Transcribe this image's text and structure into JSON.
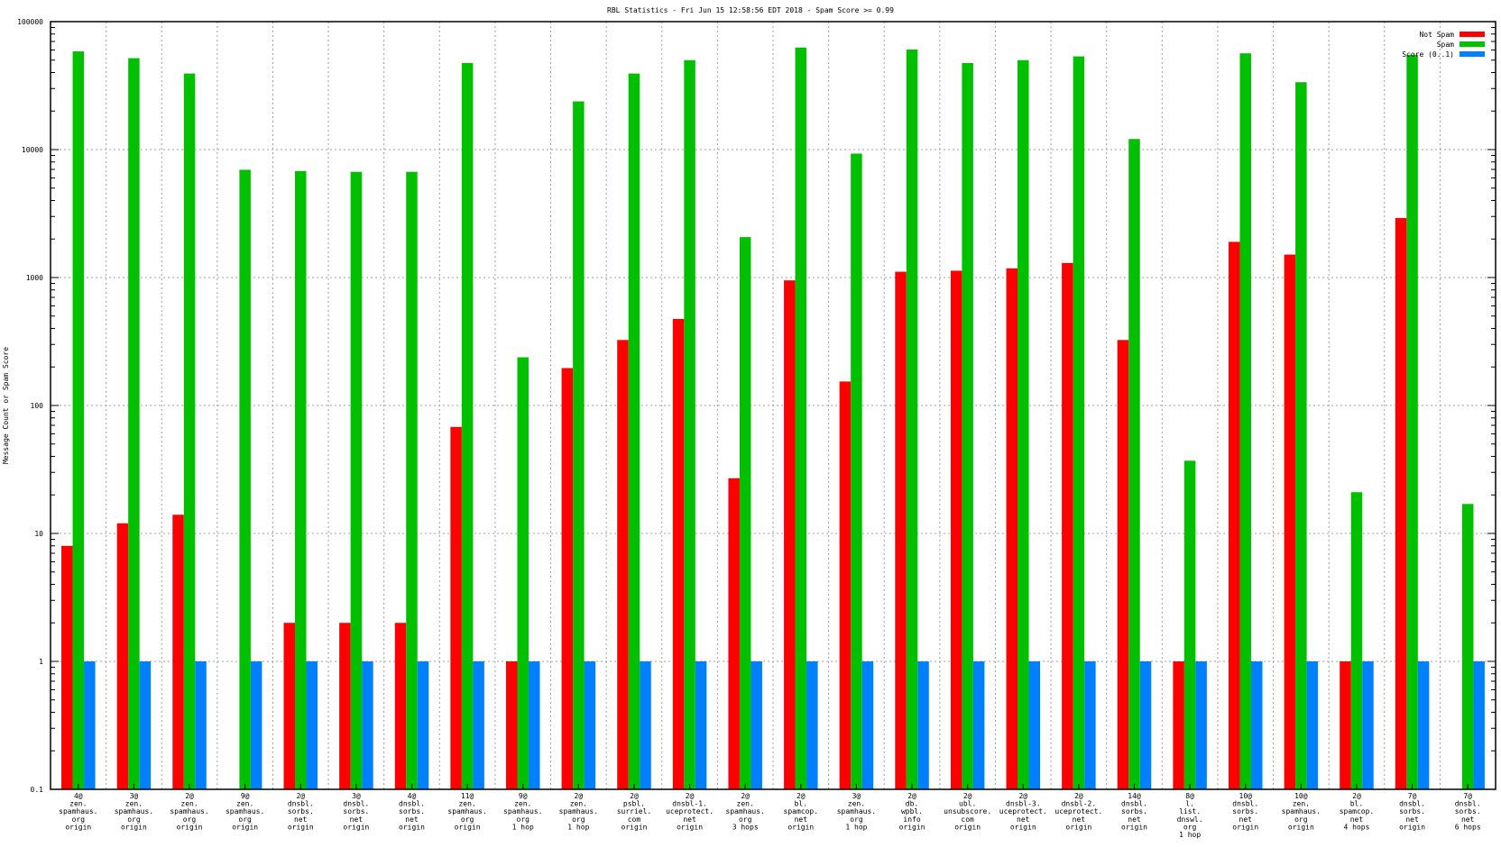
{
  "chart_data": {
    "type": "bar",
    "title": "RBL Statistics - Fri Jun 15 12:58:56 EDT 2018 - Spam Score >= 0.99",
    "xlabel": "",
    "ylabel": "Message Count or Spam Score",
    "yscale": "log",
    "ylim": [
      0.1,
      100000
    ],
    "yticks": [
      "0.1",
      "1",
      "10",
      "100",
      "1000",
      "10000",
      "100000"
    ],
    "grid": true,
    "legend_position": "top-right",
    "categories": [
      [
        "4@",
        "zen.",
        "spamhaus.",
        "org",
        "origin"
      ],
      [
        "3@",
        "zen.",
        "spamhaus.",
        "org",
        "origin"
      ],
      [
        "2@",
        "zen.",
        "spamhaus.",
        "org",
        "origin"
      ],
      [
        "9@",
        "zen.",
        "spamhaus.",
        "org",
        "origin"
      ],
      [
        "2@",
        "dnsbl.",
        "sorbs.",
        "net",
        "origin"
      ],
      [
        "3@",
        "dnsbl.",
        "sorbs.",
        "net",
        "origin"
      ],
      [
        "4@",
        "dnsbl.",
        "sorbs.",
        "net",
        "origin"
      ],
      [
        "11@",
        "zen.",
        "spamhaus.",
        "org",
        "origin"
      ],
      [
        "9@",
        "zen.",
        "spamhaus.",
        "org",
        "1 hop"
      ],
      [
        "2@",
        "zen.",
        "spamhaus.",
        "org",
        "1 hop"
      ],
      [
        "2@",
        "psbl.",
        "surriel.",
        "com",
        "origin"
      ],
      [
        "2@",
        "dnsbl-1.",
        "uceprotect.",
        "net",
        "origin"
      ],
      [
        "2@",
        "zen.",
        "spamhaus.",
        "org",
        "3 hops"
      ],
      [
        "2@",
        "bl.",
        "spamcop.",
        "net",
        "origin"
      ],
      [
        "3@",
        "zen.",
        "spamhaus.",
        "org",
        "1 hop"
      ],
      [
        "2@",
        "db.",
        "wpbl.",
        "info",
        "origin"
      ],
      [
        "2@",
        "ubl.",
        "unsubscore.",
        "com",
        "origin"
      ],
      [
        "2@",
        "dnsbl-3.",
        "uceprotect.",
        "net",
        "origin"
      ],
      [
        "2@",
        "dnsbl-2.",
        "uceprotect.",
        "net",
        "origin"
      ],
      [
        "14@",
        "dnsbl.",
        "sorbs.",
        "net",
        "origin"
      ],
      [
        "8@",
        "l.",
        "list.",
        "dnswl.",
        "org",
        "1 hop"
      ],
      [
        "10@",
        "dnsbl.",
        "sorbs.",
        "net",
        "origin"
      ],
      [
        "10@",
        "zen.",
        "spamhaus.",
        "org",
        "origin"
      ],
      [
        "2@",
        "bl.",
        "spamcop.",
        "net",
        "4 hops"
      ],
      [
        "7@",
        "dnsbl.",
        "sorbs.",
        "net",
        "origin"
      ],
      [
        "7@",
        "dnsbl.",
        "sorbs.",
        "net",
        "6 hops"
      ]
    ],
    "series": [
      {
        "name": "Not Spam",
        "color": "#ff0000",
        "values": [
          8,
          12,
          14,
          0,
          2,
          2,
          2,
          68,
          1,
          196,
          325,
          475,
          27,
          950,
          154,
          1110,
          1130,
          1180,
          1300,
          325,
          1,
          1900,
          1510,
          1,
          2920,
          0
        ]
      },
      {
        "name": "Spam",
        "color": "#00c000",
        "values": [
          58500,
          51800,
          39300,
          6950,
          6800,
          6700,
          6700,
          47500,
          238,
          23800,
          39300,
          50000,
          2070,
          62700,
          9300,
          60500,
          47500,
          50000,
          53500,
          12100,
          37,
          56500,
          33600,
          21,
          55000,
          17
        ]
      },
      {
        "name": "Score (0..1)",
        "color": "#0080ff",
        "values": [
          1,
          1,
          1,
          1,
          1,
          1,
          1,
          1,
          1,
          1,
          1,
          1,
          1,
          1,
          1,
          1,
          1,
          1,
          1,
          1,
          1,
          1,
          1,
          1,
          1,
          1
        ]
      }
    ]
  }
}
